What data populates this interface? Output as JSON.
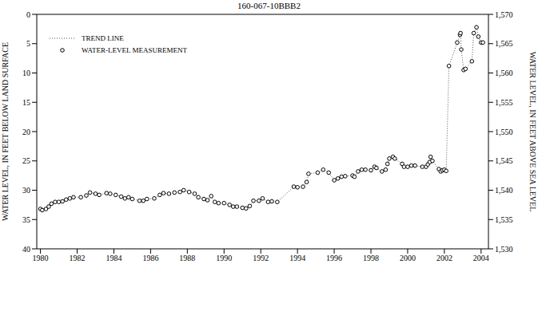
{
  "chart_data": {
    "type": "line",
    "title": "160-067-10BBB2",
    "y_label": "WATER LEVEL, IN FEET BELOW LAND SURFACE",
    "y2_label": "WATER LEVEL, IN FEET ABOVE SEA LEVEL",
    "xlim": [
      1979.8,
      2004.4
    ],
    "xticks": [
      1980,
      1982,
      1984,
      1986,
      1988,
      1990,
      1992,
      1994,
      1996,
      1998,
      2000,
      2002,
      2004
    ],
    "ylim": [
      40,
      0
    ],
    "yticks": [
      0,
      5,
      10,
      15,
      20,
      25,
      30,
      35,
      40
    ],
    "y2lim": [
      1530,
      1570
    ],
    "y2ticks": [
      {
        "value": 1530,
        "label": "1,530"
      },
      {
        "value": 1535,
        "label": "1,535"
      },
      {
        "value": 1540,
        "label": "1,540"
      },
      {
        "value": 1545,
        "label": "1,545"
      },
      {
        "value": 1550,
        "label": "1,550"
      },
      {
        "value": 1555,
        "label": "1,555"
      },
      {
        "value": 1560,
        "label": "1,560"
      },
      {
        "value": 1565,
        "label": "1,565"
      },
      {
        "value": 1570,
        "label": "1,570"
      }
    ],
    "grid": false,
    "legend": "upper left",
    "x": [
      1980.0,
      1980.1,
      1980.3,
      1980.45,
      1980.6,
      1980.8,
      1981.0,
      1981.2,
      1981.4,
      1981.6,
      1981.8,
      1982.2,
      1982.5,
      1982.7,
      1983.0,
      1983.2,
      1983.6,
      1983.8,
      1984.1,
      1984.4,
      1984.6,
      1984.8,
      1985.0,
      1985.4,
      1985.6,
      1985.8,
      1986.2,
      1986.5,
      1986.7,
      1987.0,
      1987.3,
      1987.6,
      1987.8,
      1988.1,
      1988.4,
      1988.6,
      1988.9,
      1989.1,
      1989.3,
      1989.5,
      1989.7,
      1990.0,
      1990.3,
      1990.5,
      1990.7,
      1991.0,
      1991.2,
      1991.4,
      1991.6,
      1991.9,
      1992.1,
      1992.4,
      1992.6,
      1992.9,
      1993.8,
      1994.0,
      1994.3,
      1994.5,
      1994.6,
      1995.1,
      1995.4,
      1995.7,
      1996.0,
      1996.2,
      1996.4,
      1996.6,
      1997.0,
      1997.1,
      1997.3,
      1997.5,
      1997.7,
      1998.0,
      1998.2,
      1998.3,
      1998.6,
      1998.8,
      1998.9,
      1999.0,
      1999.2,
      1999.3,
      1999.7,
      1999.8,
      2000.0,
      2000.2,
      2000.4,
      2000.8,
      2001.0,
      2001.1,
      2001.2,
      2001.25,
      2001.35,
      2001.7,
      2001.8,
      2001.9,
      2002.0,
      2002.1,
      2002.25,
      2002.7,
      2002.85,
      2002.88,
      2002.92,
      2003.05,
      2003.15,
      2003.5,
      2003.6,
      2003.75,
      2003.85,
      2004.0,
      2004.1
    ],
    "series": [
      {
        "name": "TREND LINE",
        "type": "line",
        "line_style": "dotted",
        "marker": "none",
        "color": "#555555",
        "values": [
          33.2,
          33.4,
          33.2,
          32.8,
          32.3,
          32.0,
          32.0,
          31.9,
          31.6,
          31.4,
          31.2,
          31.2,
          30.9,
          30.4,
          30.6,
          30.8,
          30.5,
          30.6,
          30.8,
          31.1,
          31.4,
          31.2,
          31.5,
          31.8,
          31.8,
          31.5,
          31.4,
          30.8,
          30.5,
          30.6,
          30.4,
          30.3,
          30.0,
          30.3,
          30.6,
          31.2,
          31.5,
          31.7,
          31.0,
          32.0,
          32.2,
          32.2,
          32.5,
          32.8,
          32.8,
          33.0,
          33.1,
          32.7,
          31.8,
          31.8,
          31.4,
          32.0,
          31.9,
          32.0,
          29.4,
          29.5,
          29.4,
          28.6,
          27.2,
          27.0,
          26.5,
          27.0,
          28.3,
          28.0,
          27.7,
          27.6,
          27.5,
          27.7,
          26.8,
          26.5,
          26.5,
          26.6,
          26.0,
          26.2,
          26.8,
          26.5,
          25.5,
          24.6,
          24.3,
          24.6,
          25.5,
          26.0,
          26.0,
          25.8,
          25.8,
          26.0,
          26.0,
          25.6,
          25.2,
          24.3,
          25.0,
          26.4,
          26.8,
          26.6,
          26.5,
          26.7,
          8.8,
          4.8,
          3.5,
          3.2,
          6.0,
          9.5,
          9.3,
          8.0,
          3.2,
          2.2,
          3.8,
          4.8,
          4.8
        ]
      },
      {
        "name": "WATER-LEVEL MEASUREMENT",
        "type": "scatter",
        "line_style": "none",
        "marker": "circle",
        "color": "#000000",
        "values": [
          33.2,
          33.4,
          33.2,
          32.8,
          32.3,
          32.0,
          32.0,
          31.9,
          31.6,
          31.4,
          31.2,
          31.2,
          30.9,
          30.4,
          30.6,
          30.8,
          30.5,
          30.6,
          30.8,
          31.1,
          31.4,
          31.2,
          31.5,
          31.8,
          31.8,
          31.5,
          31.4,
          30.8,
          30.5,
          30.6,
          30.4,
          30.3,
          30.0,
          30.3,
          30.6,
          31.2,
          31.5,
          31.7,
          31.0,
          32.0,
          32.2,
          32.2,
          32.5,
          32.8,
          32.8,
          33.0,
          33.1,
          32.7,
          31.8,
          31.8,
          31.4,
          32.0,
          31.9,
          32.0,
          29.4,
          29.5,
          29.4,
          28.6,
          27.2,
          27.0,
          26.5,
          27.0,
          28.3,
          28.0,
          27.7,
          27.6,
          27.5,
          27.7,
          26.8,
          26.5,
          26.5,
          26.6,
          26.0,
          26.2,
          26.8,
          26.5,
          25.5,
          24.6,
          24.3,
          24.6,
          25.5,
          26.0,
          26.0,
          25.8,
          25.8,
          26.0,
          26.0,
          25.6,
          25.2,
          24.3,
          25.0,
          26.4,
          26.8,
          26.6,
          26.5,
          26.7,
          8.8,
          4.8,
          3.5,
          3.2,
          6.0,
          9.5,
          9.3,
          8.0,
          3.2,
          2.2,
          3.8,
          4.8,
          4.8
        ]
      }
    ]
  }
}
